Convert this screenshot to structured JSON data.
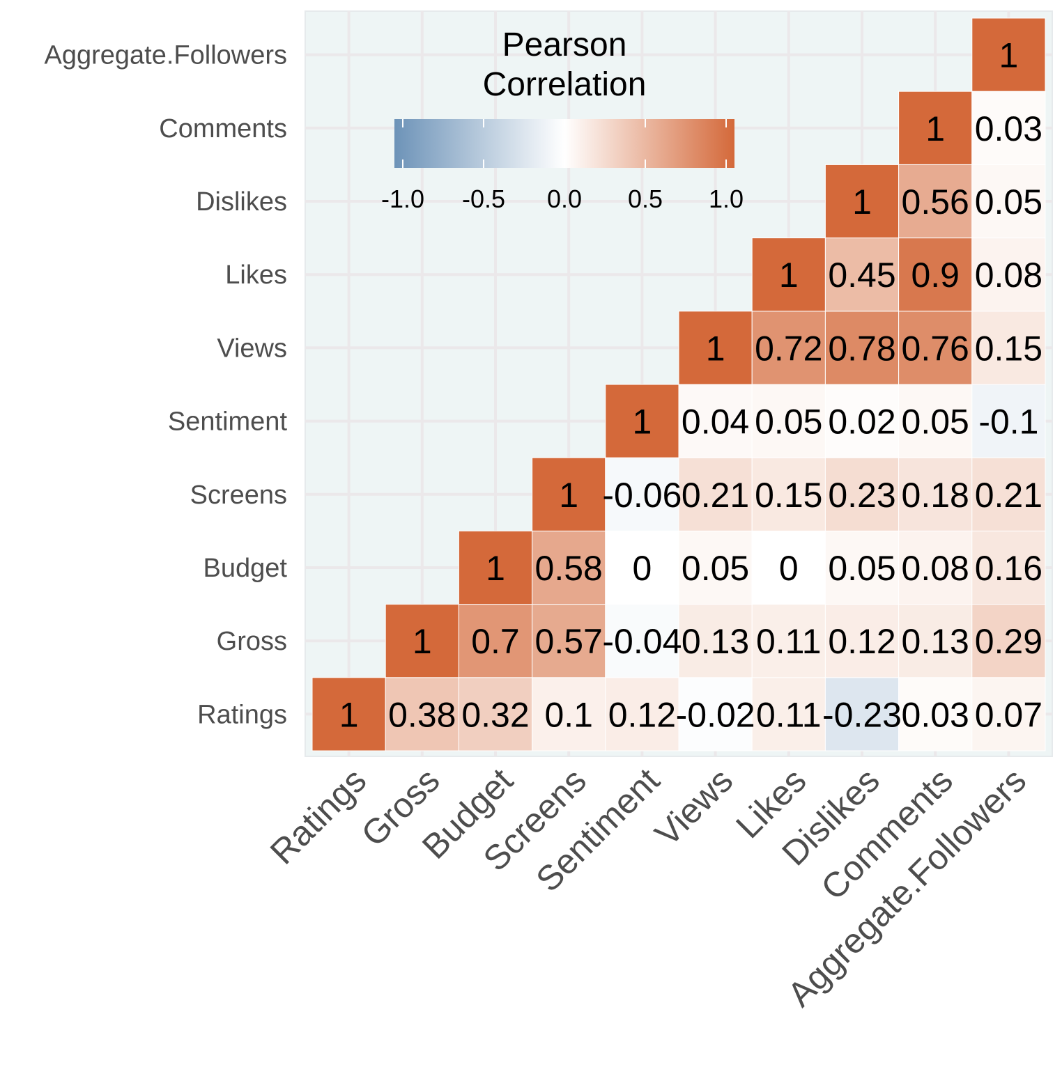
{
  "chart_data": {
    "type": "heatmap",
    "variables": [
      "Ratings",
      "Gross",
      "Budget",
      "Screens",
      "Sentiment",
      "Views",
      "Likes",
      "Dislikes",
      "Comments",
      "Aggregate.Followers"
    ],
    "cells": [
      {
        "x": "Ratings",
        "y": "Ratings",
        "value": 1,
        "label": "1"
      },
      {
        "x": "Gross",
        "y": "Ratings",
        "value": 0.38,
        "label": "0.38"
      },
      {
        "x": "Budget",
        "y": "Ratings",
        "value": 0.32,
        "label": "0.32"
      },
      {
        "x": "Screens",
        "y": "Ratings",
        "value": 0.1,
        "label": "0.1"
      },
      {
        "x": "Sentiment",
        "y": "Ratings",
        "value": 0.12,
        "label": "0.12"
      },
      {
        "x": "Views",
        "y": "Ratings",
        "value": -0.02,
        "label": "-0.02"
      },
      {
        "x": "Likes",
        "y": "Ratings",
        "value": 0.11,
        "label": "0.11"
      },
      {
        "x": "Dislikes",
        "y": "Ratings",
        "value": -0.23,
        "label": "-0.23"
      },
      {
        "x": "Comments",
        "y": "Ratings",
        "value": 0.03,
        "label": "0.03"
      },
      {
        "x": "Aggregate.Followers",
        "y": "Ratings",
        "value": 0.07,
        "label": "0.07"
      },
      {
        "x": "Gross",
        "y": "Gross",
        "value": 1,
        "label": "1"
      },
      {
        "x": "Budget",
        "y": "Gross",
        "value": 0.7,
        "label": "0.7"
      },
      {
        "x": "Screens",
        "y": "Gross",
        "value": 0.57,
        "label": "0.57"
      },
      {
        "x": "Sentiment",
        "y": "Gross",
        "value": -0.04,
        "label": "-0.04"
      },
      {
        "x": "Views",
        "y": "Gross",
        "value": 0.13,
        "label": "0.13"
      },
      {
        "x": "Likes",
        "y": "Gross",
        "value": 0.11,
        "label": "0.11"
      },
      {
        "x": "Dislikes",
        "y": "Gross",
        "value": 0.12,
        "label": "0.12"
      },
      {
        "x": "Comments",
        "y": "Gross",
        "value": 0.13,
        "label": "0.13"
      },
      {
        "x": "Aggregate.Followers",
        "y": "Gross",
        "value": 0.29,
        "label": "0.29"
      },
      {
        "x": "Budget",
        "y": "Budget",
        "value": 1,
        "label": "1"
      },
      {
        "x": "Screens",
        "y": "Budget",
        "value": 0.58,
        "label": "0.58"
      },
      {
        "x": "Sentiment",
        "y": "Budget",
        "value": 0,
        "label": "0"
      },
      {
        "x": "Views",
        "y": "Budget",
        "value": 0.05,
        "label": "0.05"
      },
      {
        "x": "Likes",
        "y": "Budget",
        "value": 0,
        "label": "0"
      },
      {
        "x": "Dislikes",
        "y": "Budget",
        "value": 0.05,
        "label": "0.05"
      },
      {
        "x": "Comments",
        "y": "Budget",
        "value": 0.08,
        "label": "0.08"
      },
      {
        "x": "Aggregate.Followers",
        "y": "Budget",
        "value": 0.16,
        "label": "0.16"
      },
      {
        "x": "Screens",
        "y": "Screens",
        "value": 1,
        "label": "1"
      },
      {
        "x": "Sentiment",
        "y": "Screens",
        "value": -0.06,
        "label": "-0.06"
      },
      {
        "x": "Views",
        "y": "Screens",
        "value": 0.21,
        "label": "0.21"
      },
      {
        "x": "Likes",
        "y": "Screens",
        "value": 0.15,
        "label": "0.15"
      },
      {
        "x": "Dislikes",
        "y": "Screens",
        "value": 0.23,
        "label": "0.23"
      },
      {
        "x": "Comments",
        "y": "Screens",
        "value": 0.18,
        "label": "0.18"
      },
      {
        "x": "Aggregate.Followers",
        "y": "Screens",
        "value": 0.21,
        "label": "0.21"
      },
      {
        "x": "Sentiment",
        "y": "Sentiment",
        "value": 1,
        "label": "1"
      },
      {
        "x": "Views",
        "y": "Sentiment",
        "value": 0.04,
        "label": "0.04"
      },
      {
        "x": "Likes",
        "y": "Sentiment",
        "value": 0.05,
        "label": "0.05"
      },
      {
        "x": "Dislikes",
        "y": "Sentiment",
        "value": 0.02,
        "label": "0.02"
      },
      {
        "x": "Comments",
        "y": "Sentiment",
        "value": 0.05,
        "label": "0.05"
      },
      {
        "x": "Aggregate.Followers",
        "y": "Sentiment",
        "value": -0.1,
        "label": "-0.1"
      },
      {
        "x": "Views",
        "y": "Views",
        "value": 1,
        "label": "1"
      },
      {
        "x": "Likes",
        "y": "Views",
        "value": 0.72,
        "label": "0.72"
      },
      {
        "x": "Dislikes",
        "y": "Views",
        "value": 0.78,
        "label": "0.78"
      },
      {
        "x": "Comments",
        "y": "Views",
        "value": 0.76,
        "label": "0.76"
      },
      {
        "x": "Aggregate.Followers",
        "y": "Views",
        "value": 0.15,
        "label": "0.15"
      },
      {
        "x": "Likes",
        "y": "Likes",
        "value": 1,
        "label": "1"
      },
      {
        "x": "Dislikes",
        "y": "Likes",
        "value": 0.45,
        "label": "0.45"
      },
      {
        "x": "Comments",
        "y": "Likes",
        "value": 0.9,
        "label": "0.9"
      },
      {
        "x": "Aggregate.Followers",
        "y": "Likes",
        "value": 0.08,
        "label": "0.08"
      },
      {
        "x": "Dislikes",
        "y": "Dislikes",
        "value": 1,
        "label": "1"
      },
      {
        "x": "Comments",
        "y": "Dislikes",
        "value": 0.56,
        "label": "0.56"
      },
      {
        "x": "Aggregate.Followers",
        "y": "Dislikes",
        "value": 0.05,
        "label": "0.05"
      },
      {
        "x": "Comments",
        "y": "Comments",
        "value": 1,
        "label": "1"
      },
      {
        "x": "Aggregate.Followers",
        "y": "Comments",
        "value": 0.03,
        "label": "0.03"
      },
      {
        "x": "Aggregate.Followers",
        "y": "Aggregate.Followers",
        "value": 1,
        "label": "1"
      }
    ],
    "legend": {
      "title": [
        "Pearson",
        "Correlation"
      ],
      "range": [
        -1,
        1
      ],
      "ticks": [
        -1.0,
        -0.5,
        0.0,
        0.5,
        1.0
      ],
      "tick_labels": [
        "-1.0",
        "-0.5",
        "0.0",
        "0.5",
        "1.0"
      ],
      "placement": "top-left inside plot",
      "low_color": "#6d93b8",
      "mid_color": "#ffffff",
      "high_color": "#d4693a"
    },
    "panel_background": "#eef5f5",
    "grid": true
  }
}
